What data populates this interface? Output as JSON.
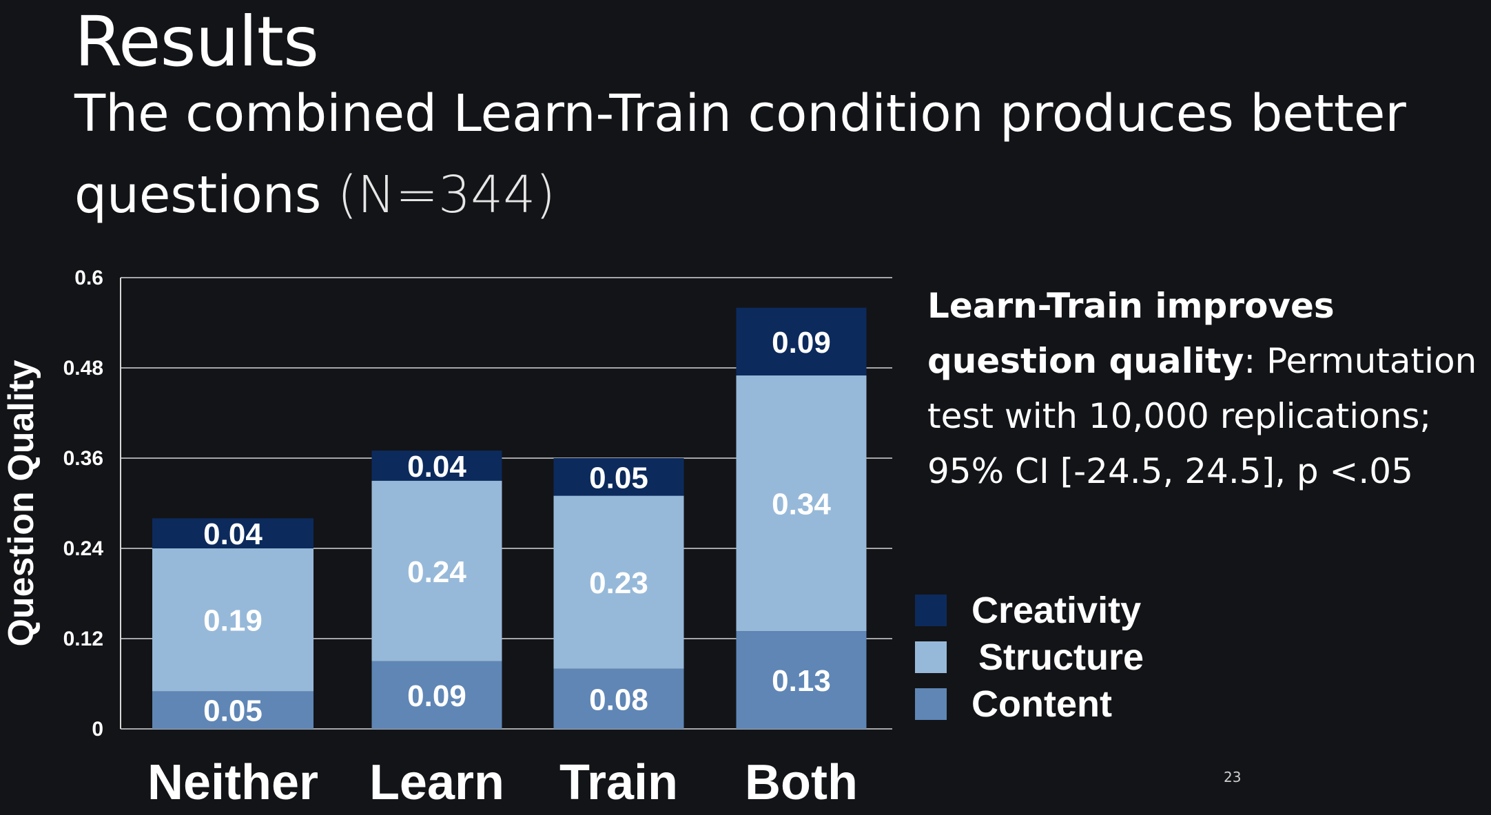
{
  "slide": {
    "title": "Results",
    "subtitle_main": "The combined Learn-Train condition produces better questions",
    "subtitle_n": "(N=344)",
    "page_number": "23"
  },
  "note": {
    "bold_text": "Learn-Train improves question quality",
    "rest_text": ": Permutation test with 10,000 replications; 95% CI [-24.5, 24.5], p <.05"
  },
  "colors": {
    "creativity": "#0c2a5c",
    "structure": "#97b9d9",
    "content": "#5f86b5",
    "background": "#131417",
    "gridline": "#d8d8d8"
  },
  "chart_data": {
    "type": "bar",
    "stacked": true,
    "categories": [
      "Neither",
      "Learn",
      "Train",
      "Both"
    ],
    "series": [
      {
        "name": "Content",
        "values": [
          0.05,
          0.09,
          0.08,
          0.13
        ]
      },
      {
        "name": "Structure",
        "values": [
          0.19,
          0.24,
          0.23,
          0.34
        ]
      },
      {
        "name": "Creativity",
        "values": [
          0.04,
          0.04,
          0.05,
          0.09
        ]
      }
    ],
    "data_labels": [
      [
        "0.05",
        "0.09",
        "0.08",
        "0.13"
      ],
      [
        "0.19",
        "0.24",
        "0.23",
        "0.34"
      ],
      [
        "0.04",
        "0.04",
        "0.05",
        "0.09"
      ]
    ],
    "title": "",
    "xlabel": "",
    "ylabel": "Question Quality",
    "ylim": [
      0,
      0.6
    ],
    "yticks": [
      0,
      0.12,
      0.24,
      0.36,
      0.48,
      0.6
    ],
    "ytick_labels": [
      "0",
      "0.12",
      "0.24",
      "0.36",
      "0.48",
      "0.6"
    ],
    "grid": true,
    "legend": {
      "placement": "right",
      "entries": [
        "Creativity",
        "Structure",
        "Content"
      ]
    }
  }
}
